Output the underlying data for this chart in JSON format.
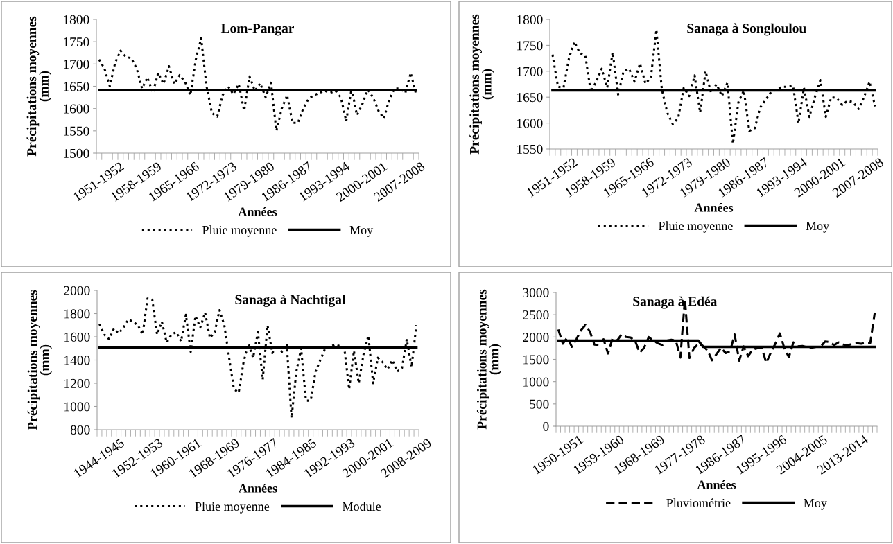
{
  "chart_data": [
    {
      "type": "line",
      "title": "Lom-Pangar",
      "xlabel": "Années",
      "ylabel": "Précipitations moyennes (mm)",
      "categories": [
        "1951-1952",
        null,
        null,
        null,
        null,
        null,
        null,
        "1958-1959",
        null,
        null,
        null,
        null,
        null,
        null,
        "1965-1966",
        null,
        null,
        null,
        null,
        null,
        null,
        "1972-1973",
        null,
        null,
        null,
        null,
        null,
        null,
        "1979-1980",
        null,
        null,
        null,
        null,
        null,
        null,
        "1986-1987",
        null,
        null,
        null,
        null,
        null,
        null,
        "1993-1994",
        null,
        null,
        null,
        null,
        null,
        null,
        "2000-2001",
        null,
        null,
        null,
        null,
        null,
        null,
        "2007-2008",
        null,
        null,
        null
      ],
      "ylim": [
        1500,
        1800
      ],
      "yticks": [
        1500,
        1550,
        1600,
        1650,
        1700,
        1750,
        1800
      ],
      "grid": false,
      "legend": "bottom",
      "marker": "none",
      "series": [
        {
          "name": "Pluie moyenne",
          "color": "#000000",
          "line_style": "dotted",
          "values": [
            1710,
            1690,
            1650,
            1703,
            1730,
            1716,
            1713,
            1690,
            1645,
            1670,
            1635,
            1680,
            1655,
            1695,
            1655,
            1675,
            1660,
            1630,
            1710,
            1758,
            1650,
            1590,
            1582,
            1630,
            1650,
            1632,
            1655,
            1595,
            1672,
            1640,
            1657,
            1625,
            1658,
            1550,
            1600,
            1630,
            1568,
            1568,
            1600,
            1622,
            1630,
            1635,
            1640,
            1635,
            1640,
            1625,
            1572,
            1645,
            1585,
            1610,
            1642,
            1625,
            1595,
            1578,
            1620,
            1645,
            1645,
            1635,
            1680,
            1632
          ]
        },
        {
          "name": "Moy",
          "color": "#000000",
          "line_style": "solid",
          "values": [
            1641,
            1641,
            1641,
            1641,
            1641,
            1641,
            1641,
            1641,
            1641,
            1641,
            1641,
            1641,
            1641,
            1641,
            1641,
            1641,
            1641,
            1641,
            1641,
            1641,
            1641,
            1641,
            1641,
            1641,
            1641,
            1641,
            1641,
            1641,
            1641,
            1641,
            1641,
            1641,
            1641,
            1641,
            1641,
            1641,
            1641,
            1641,
            1641,
            1641,
            1641,
            1641,
            1641,
            1641,
            1641,
            1641,
            1641,
            1641,
            1641,
            1641,
            1641,
            1641,
            1641,
            1641,
            1641,
            1641,
            1641,
            1641,
            1641,
            1641
          ]
        }
      ]
    },
    {
      "type": "line",
      "title": "Sanaga à Songloulou",
      "xlabel": "Années",
      "ylabel": "Précipitations moyennes (mm)",
      "categories": [
        "1951-1952",
        null,
        null,
        null,
        null,
        null,
        null,
        "1958-1959",
        null,
        null,
        null,
        null,
        null,
        null,
        "1965-1966",
        null,
        null,
        null,
        null,
        null,
        null,
        "1972-1973",
        null,
        null,
        null,
        null,
        null,
        null,
        "1979-1980",
        null,
        null,
        null,
        null,
        null,
        null,
        "1986-1987",
        null,
        null,
        null,
        null,
        null,
        null,
        "1993-1994",
        null,
        null,
        null,
        null,
        null,
        null,
        "2000-2001",
        null,
        null,
        null,
        null,
        null,
        null,
        "2007-2008",
        null,
        null,
        null
      ],
      "ylim": [
        1550,
        1800
      ],
      "yticks": [
        1550,
        1600,
        1650,
        1700,
        1750,
        1800
      ],
      "grid": false,
      "legend": "bottom",
      "marker": "none",
      "series": [
        {
          "name": "Pluie moyenne",
          "color": "#000000",
          "line_style": "dotted",
          "values": [
            1732,
            1670,
            1668,
            1725,
            1757,
            1735,
            1730,
            1660,
            1680,
            1705,
            1668,
            1737,
            1655,
            1700,
            1705,
            1680,
            1715,
            1676,
            1688,
            1780,
            1665,
            1620,
            1598,
            1610,
            1668,
            1652,
            1692,
            1620,
            1700,
            1658,
            1675,
            1652,
            1678,
            1560,
            1640,
            1663,
            1585,
            1590,
            1630,
            1645,
            1660,
            1665,
            1670,
            1670,
            1672,
            1600,
            1668,
            1612,
            1650,
            1683,
            1612,
            1650,
            1648,
            1635,
            1643,
            1640,
            1627,
            1650,
            1680,
            1632
          ]
        },
        {
          "name": "Moy",
          "color": "#000000",
          "line_style": "solid",
          "values": [
            1663,
            1663,
            1663,
            1663,
            1663,
            1663,
            1663,
            1663,
            1663,
            1663,
            1663,
            1663,
            1663,
            1663,
            1663,
            1663,
            1663,
            1663,
            1663,
            1663,
            1663,
            1663,
            1663,
            1663,
            1663,
            1663,
            1663,
            1663,
            1663,
            1663,
            1663,
            1663,
            1663,
            1663,
            1663,
            1663,
            1663,
            1663,
            1663,
            1663,
            1663,
            1663,
            1663,
            1663,
            1663,
            1663,
            1663,
            1663,
            1663,
            1663,
            1663,
            1663,
            1663,
            1663,
            1663,
            1663,
            1663,
            1663,
            1663,
            1663
          ]
        }
      ]
    },
    {
      "type": "line",
      "title": "Sanaga à Nachtigal",
      "xlabel": "Années",
      "ylabel": "Précipitations moyennes (mm)",
      "categories": [
        "1944-1945",
        null,
        null,
        null,
        null,
        null,
        null,
        null,
        "1952-1953",
        null,
        null,
        null,
        null,
        null,
        null,
        null,
        "1960-1961",
        null,
        null,
        null,
        null,
        null,
        null,
        null,
        "1968-1969",
        null,
        null,
        null,
        null,
        null,
        null,
        null,
        "1976-1977",
        null,
        null,
        null,
        null,
        null,
        null,
        null,
        "1984-1985",
        null,
        null,
        null,
        null,
        null,
        null,
        null,
        "1992-1993",
        null,
        null,
        null,
        null,
        null,
        null,
        null,
        "2000-2001",
        null,
        null,
        null,
        null,
        null,
        null,
        null,
        "2008-2009",
        null,
        null
      ],
      "ylim": [
        800,
        2000
      ],
      "yticks": [
        800,
        1000,
        1200,
        1400,
        1600,
        1800,
        2000
      ],
      "grid": false,
      "legend": "bottom",
      "marker": "none",
      "series": [
        {
          "name": "Pluie moyenne",
          "color": "#000000",
          "line_style": "dotted",
          "values": [
            1710,
            1620,
            1580,
            1670,
            1630,
            1680,
            1750,
            1730,
            1700,
            1620,
            1930,
            1920,
            1620,
            1730,
            1550,
            1620,
            1640,
            1560,
            1790,
            1470,
            1780,
            1680,
            1810,
            1590,
            1640,
            1830,
            1700,
            1420,
            1150,
            1120,
            1380,
            1540,
            1420,
            1640,
            1230,
            1700,
            1460,
            1530,
            1470,
            1540,
            900,
            1300,
            1500,
            1050,
            1050,
            1300,
            1400,
            1500,
            1510,
            1535,
            1520,
            1500,
            1150,
            1480,
            1200,
            1450,
            1610,
            1200,
            1420,
            1380,
            1320,
            1400,
            1300,
            1330,
            1580,
            1340,
            1700
          ]
        },
        {
          "name": "Module",
          "color": "#000000",
          "line_style": "solid",
          "values": [
            1505,
            1505,
            1505,
            1505,
            1505,
            1505,
            1505,
            1505,
            1505,
            1505,
            1505,
            1505,
            1505,
            1505,
            1505,
            1505,
            1505,
            1505,
            1505,
            1505,
            1505,
            1505,
            1505,
            1505,
            1505,
            1505,
            1505,
            1505,
            1505,
            1505,
            1505,
            1505,
            1505,
            1505,
            1505,
            1505,
            1505,
            1505,
            1505,
            1505,
            1505,
            1505,
            1505,
            1505,
            1505,
            1505,
            1505,
            1505,
            1505,
            1505,
            1505,
            1505,
            1505,
            1505,
            1505,
            1505,
            1505,
            1505,
            1505,
            1505,
            1505,
            1505,
            1505,
            1505,
            1505,
            1505,
            1505
          ]
        }
      ]
    },
    {
      "type": "line",
      "title": "Sanaga à Edéa",
      "xlabel": "Années",
      "ylabel": "Précipitations moyennes (mm)",
      "categories": [
        "1950-1951",
        null,
        null,
        null,
        null,
        null,
        null,
        null,
        null,
        "1959-1960",
        null,
        null,
        null,
        null,
        null,
        null,
        null,
        null,
        "1968-1969",
        null,
        null,
        null,
        null,
        null,
        null,
        null,
        null,
        "1977-1978",
        null,
        null,
        null,
        null,
        null,
        null,
        null,
        null,
        "1986-1987",
        null,
        null,
        null,
        null,
        null,
        null,
        null,
        null,
        "1995-1996",
        null,
        null,
        null,
        null,
        null,
        null,
        null,
        null,
        "2004-2005",
        null,
        null,
        null,
        null,
        null,
        null,
        null,
        null,
        "2013-2014",
        null,
        null,
        null,
        null,
        null,
        null,
        null
      ],
      "ylim": [
        0,
        3000
      ],
      "yticks": [
        0,
        500,
        1000,
        1500,
        2000,
        2500,
        3000
      ],
      "grid": false,
      "legend": "bottom",
      "marker": "none",
      "series": [
        {
          "name": "Pluviométrie",
          "color": "#000000",
          "line_style": "dashed",
          "values": [
            2170,
            1850,
            1990,
            1780,
            1950,
            2150,
            2270,
            2120,
            1830,
            1820,
            1950,
            1630,
            1970,
            1920,
            2060,
            2000,
            1990,
            1910,
            1650,
            1760,
            2000,
            1920,
            1860,
            1820,
            1920,
            1940,
            1920,
            1540,
            2850,
            1530,
            1750,
            1850,
            1800,
            1700,
            1480,
            1620,
            1760,
            1640,
            1680,
            2060,
            1470,
            1790,
            1570,
            1720,
            1750,
            1760,
            1420,
            1650,
            1850,
            2080,
            1750,
            1550,
            1880,
            1790,
            1800,
            1770,
            1760,
            1780,
            1780,
            1900,
            1890,
            1820,
            1880,
            1830,
            1820,
            1840,
            1860,
            1850,
            1870,
            1870,
            2550
          ]
        },
        {
          "name": "Moy",
          "color": "#000000",
          "line_style": "solid",
          "values": [
            1920,
            1920,
            1920,
            1920,
            1920,
            1920,
            1920,
            1920,
            1920,
            1920,
            1920,
            1920,
            1920,
            1920,
            1920,
            1920,
            1920,
            1920,
            1920,
            1920,
            1920,
            1920,
            1920,
            1920,
            1920,
            1920,
            1920,
            1920,
            1920,
            1920,
            1920,
            1920,
            1780,
            1780,
            1780,
            1780,
            1780,
            1780,
            1780,
            1780,
            1780,
            1780,
            1780,
            1780,
            1780,
            1780,
            1780,
            1780,
            1780,
            1780,
            1780,
            1780,
            1780,
            1780,
            1780,
            1780,
            1780,
            1780,
            1780,
            1780,
            1780,
            1780,
            1780,
            1780,
            1780,
            1780,
            1780,
            1780,
            1780,
            1780,
            1780
          ]
        }
      ]
    }
  ]
}
